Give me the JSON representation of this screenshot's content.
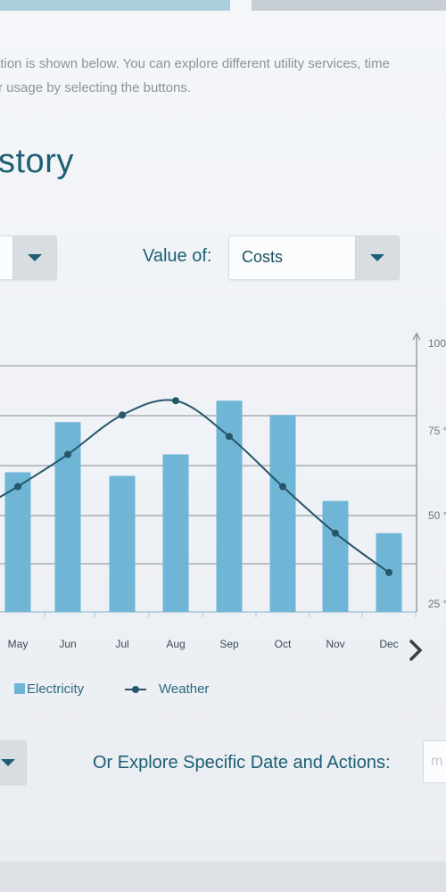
{
  "intro": {
    "line1": "ation is shown below. You can explore different utility services, time",
    "line2": "r usage by selecting the buttons."
  },
  "section_title": "story",
  "controls": {
    "value_label": "Value of:",
    "value_selected": "Costs",
    "explore_label": "Or Explore Specific Date and Actions:",
    "date_placeholder": "m"
  },
  "legend": {
    "series1": "Electricity",
    "series2": "Weather"
  },
  "chart_data": {
    "type": "bar",
    "categories": [
      "May",
      "Jun",
      "Jul",
      "Aug",
      "Sep",
      "Oct",
      "Nov",
      "Dec"
    ],
    "series": [
      {
        "name": "Electricity",
        "type": "bar",
        "values": [
          64,
          78,
          63,
          69,
          84,
          80,
          56,
          47
        ]
      },
      {
        "name": "Weather",
        "type": "line",
        "axis": "right",
        "values": [
          60,
          69,
          80,
          84,
          74,
          60,
          47,
          36
        ]
      }
    ],
    "y2_ticks": [
      "100",
      "75 °",
      "50 °",
      "25 °"
    ],
    "y2lim": [
      25,
      100
    ],
    "colors": {
      "bar": "#6fb6d6",
      "line": "#25566a",
      "grid": "#a9aeb3"
    },
    "grid": true,
    "legend_position": "bottom"
  }
}
